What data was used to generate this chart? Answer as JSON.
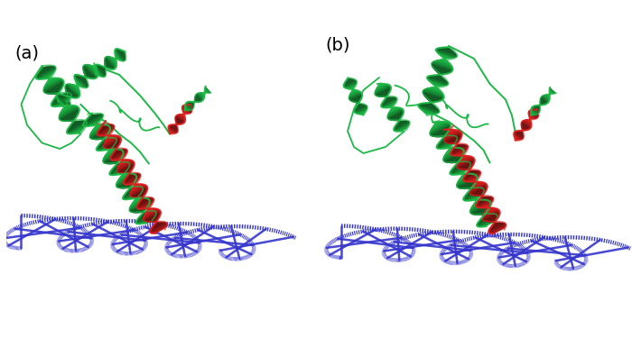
{
  "background_color": "#ffffff",
  "label_a": "(a)",
  "label_b": "(b)",
  "label_fontsize": 13,
  "fig_width": 7.0,
  "fig_height": 3.96,
  "helix_green": "#1db846",
  "helix_red": "#dd2020",
  "dna_blue": "#3535cc",
  "panel_a": {
    "dna": {
      "strand1_color": "#3535cc",
      "strand2_color": "#3535cc",
      "lw": 3.5
    }
  }
}
